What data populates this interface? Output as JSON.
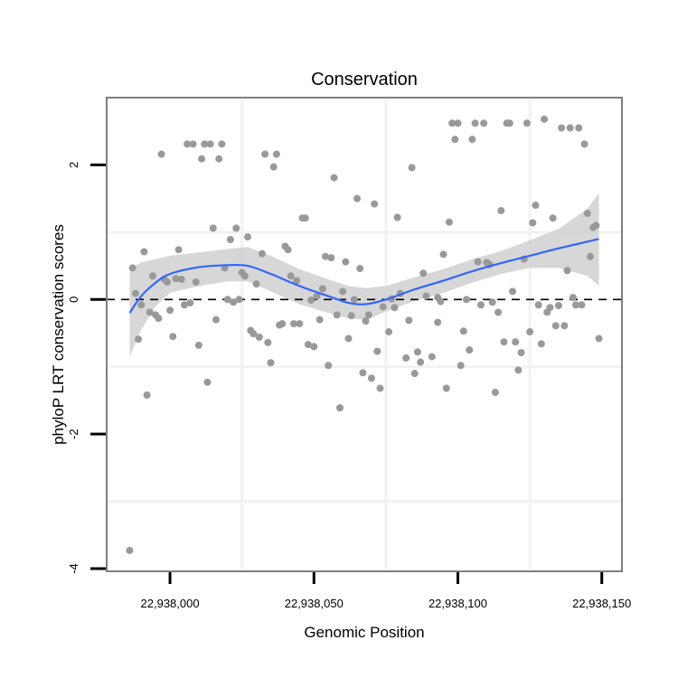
{
  "chart_data": {
    "type": "scatter",
    "title": "Conservation",
    "xlabel": "Genomic Position",
    "ylabel": "phyloP LRT conservation scores",
    "xlim": [
      22937978,
      22938157
    ],
    "ylim": [
      -4.04,
      3.0
    ],
    "xticks": [
      22938000,
      22938050,
      22938100,
      22938150
    ],
    "xtick_labels": [
      "22,938,000",
      "22,938,050",
      "22,938,100",
      "22,938,150"
    ],
    "yticks": [
      -4,
      -2,
      0,
      2
    ],
    "ytick_labels": [
      "-4",
      "-2",
      "0",
      "2"
    ],
    "minor_x_grid": [
      22938025,
      22938075,
      22938125
    ],
    "minor_y_grid": [
      -3,
      -1,
      1
    ],
    "reference_line": {
      "y": 0,
      "style": "dashed",
      "color": "#000000"
    },
    "colors": {
      "points": "#999999",
      "smooth": "#3366FF",
      "band": "#D3D3D3",
      "panel_border": "#7F7F7F",
      "grid": "#F2F2F2"
    },
    "points_x_offset_base": 22938000,
    "points": [
      [
        22938098,
        2.62
      ],
      [
        22938100,
        2.62
      ],
      [
        22938106,
        2.62
      ],
      [
        22938109,
        2.62
      ],
      [
        22938117,
        2.62
      ],
      [
        22938118,
        2.62
      ],
      [
        22938124,
        2.62
      ],
      [
        22938130,
        2.68
      ],
      [
        22938136,
        2.55
      ],
      [
        22938139,
        2.55
      ],
      [
        22938142,
        2.55
      ],
      [
        22938144,
        2.31
      ],
      [
        22938099,
        2.38
      ],
      [
        22938105,
        2.38
      ],
      [
        22938084,
        1.96
      ],
      [
        22938071,
        1.42
      ],
      [
        22938079,
        1.22
      ],
      [
        22938097,
        1.15
      ],
      [
        22938115,
        1.32
      ],
      [
        22938127,
        1.4
      ],
      [
        22938126,
        1.14
      ],
      [
        22938133,
        1.21
      ],
      [
        22938145,
        1.28
      ],
      [
        22938147,
        1.07
      ],
      [
        22938148,
        1.1
      ],
      [
        22938095,
        0.67
      ],
      [
        22938088,
        0.39
      ],
      [
        22938107,
        0.56
      ],
      [
        22938110,
        0.55
      ],
      [
        22938111,
        0.52
      ],
      [
        22938123,
        0.6
      ],
      [
        22938146,
        0.64
      ],
      [
        22938138,
        0.43
      ],
      [
        22938119,
        0.12
      ],
      [
        22938080,
        0.09
      ],
      [
        22938089,
        0.05
      ],
      [
        22938093,
        0.03
      ],
      [
        22938094,
        -0.03
      ],
      [
        22938103,
        0.0
      ],
      [
        22938108,
        -0.08
      ],
      [
        22938112,
        -0.04
      ],
      [
        22938114,
        -0.19
      ],
      [
        22938128,
        -0.08
      ],
      [
        22938131,
        -0.19
      ],
      [
        22938132,
        -0.12
      ],
      [
        22938135,
        -0.09
      ],
      [
        22938140,
        0.03
      ],
      [
        22938141,
        -0.08
      ],
      [
        22938143,
        -0.08
      ],
      [
        22938074,
        -0.11
      ],
      [
        22938078,
        -0.12
      ],
      [
        22938077,
        0.01
      ],
      [
        22938069,
        -0.23
      ],
      [
        22938068,
        -0.32
      ],
      [
        22938083,
        -0.31
      ],
      [
        22938093,
        -0.34
      ],
      [
        22938076,
        -0.48
      ],
      [
        22938102,
        -0.47
      ],
      [
        22938125,
        -0.48
      ],
      [
        22938134,
        -0.39
      ],
      [
        22938137,
        -0.39
      ],
      [
        22938149,
        -0.58
      ],
      [
        22938072,
        -0.77
      ],
      [
        22938082,
        -0.87
      ],
      [
        22938086,
        -0.78
      ],
      [
        22938087,
        -0.93
      ],
      [
        22938091,
        -0.85
      ],
      [
        22938104,
        -0.75
      ],
      [
        22938116,
        -0.63
      ],
      [
        22938120,
        -0.63
      ],
      [
        22938122,
        -0.79
      ],
      [
        22938129,
        -0.66
      ],
      [
        22938067,
        -1.09
      ],
      [
        22938070,
        -1.17
      ],
      [
        22938073,
        -1.32
      ],
      [
        22938085,
        -1.1
      ],
      [
        22938101,
        -0.98
      ],
      [
        22938096,
        -1.32
      ],
      [
        22938113,
        -1.38
      ],
      [
        22938121,
        -1.05
      ],
      [
        22937997,
        2.16
      ],
      [
        22938006,
        2.31
      ],
      [
        22938008,
        2.31
      ],
      [
        22938012,
        2.31
      ],
      [
        22938014,
        2.31
      ],
      [
        22938018,
        2.31
      ],
      [
        22938011,
        2.09
      ],
      [
        22938017,
        2.09
      ],
      [
        22938033,
        2.16
      ],
      [
        22938037,
        2.16
      ],
      [
        22938036,
        1.97
      ],
      [
        22938057,
        1.81
      ],
      [
        22938065,
        1.5
      ],
      [
        22938046,
        1.21
      ],
      [
        22938047,
        1.21
      ],
      [
        22938015,
        1.06
      ],
      [
        22938023,
        1.06
      ],
      [
        22938021,
        0.89
      ],
      [
        22938027,
        0.93
      ],
      [
        22937991,
        0.71
      ],
      [
        22938003,
        0.74
      ],
      [
        22938040,
        0.79
      ],
      [
        22938041,
        0.74
      ],
      [
        22938032,
        0.68
      ],
      [
        22938054,
        0.64
      ],
      [
        22938056,
        0.62
      ],
      [
        22938061,
        0.56
      ],
      [
        22938066,
        0.46
      ],
      [
        22937987,
        0.47
      ],
      [
        22937994,
        0.35
      ],
      [
        22937998,
        0.3
      ],
      [
        22937999,
        0.26
      ],
      [
        22938002,
        0.31
      ],
      [
        22938004,
        0.3
      ],
      [
        22938009,
        0.26
      ],
      [
        22938019,
        0.47
      ],
      [
        22938025,
        0.4
      ],
      [
        22938026,
        0.35
      ],
      [
        22938030,
        0.23
      ],
      [
        22938042,
        0.35
      ],
      [
        22938044,
        0.28
      ],
      [
        22938053,
        0.16
      ],
      [
        22938051,
        0.05
      ],
      [
        22938060,
        0.12
      ],
      [
        22937988,
        0.09
      ],
      [
        22937990,
        -0.08
      ],
      [
        22938020,
        0.0
      ],
      [
        22938022,
        -0.04
      ],
      [
        22938024,
        0.0
      ],
      [
        22938049,
        -0.01
      ],
      [
        22938064,
        0.0
      ],
      [
        22937993,
        -0.19
      ],
      [
        22937995,
        -0.23
      ],
      [
        22937996,
        -0.28
      ],
      [
        22938000,
        -0.16
      ],
      [
        22938005,
        -0.08
      ],
      [
        22938007,
        -0.05
      ],
      [
        22938016,
        -0.3
      ],
      [
        22938058,
        -0.23
      ],
      [
        22938063,
        -0.24
      ],
      [
        22937989,
        -0.59
      ],
      [
        22938001,
        -0.55
      ],
      [
        22938010,
        -0.68
      ],
      [
        22938028,
        -0.46
      ],
      [
        22938029,
        -0.51
      ],
      [
        22938031,
        -0.56
      ],
      [
        22938034,
        -0.64
      ],
      [
        22938038,
        -0.38
      ],
      [
        22938039,
        -0.36
      ],
      [
        22938043,
        -0.36
      ],
      [
        22938045,
        -0.36
      ],
      [
        22938052,
        -0.3
      ],
      [
        22938048,
        -0.67
      ],
      [
        22938050,
        -0.7
      ],
      [
        22938062,
        -0.58
      ],
      [
        22938035,
        -0.94
      ],
      [
        22938055,
        -0.98
      ],
      [
        22938013,
        -1.23
      ],
      [
        22937992,
        -1.42
      ],
      [
        22937986,
        -3.73
      ],
      [
        22938059,
        -1.61
      ]
    ],
    "smooth": {
      "method": "loess",
      "x": [
        22937986,
        22937990,
        22937995,
        22938000,
        22938010,
        22938020,
        22938027,
        22938035,
        22938045,
        22938055,
        22938062,
        22938068,
        22938075,
        22938085,
        22938095,
        22938105,
        22938115,
        22938125,
        22938135,
        22938145,
        22938149
      ],
      "y": [
        -0.2,
        0.05,
        0.25,
        0.38,
        0.48,
        0.51,
        0.5,
        0.38,
        0.2,
        0.05,
        -0.05,
        -0.07,
        0.0,
        0.15,
        0.28,
        0.42,
        0.54,
        0.65,
        0.76,
        0.86,
        0.9
      ],
      "upper": [
        0.45,
        0.55,
        0.6,
        0.65,
        0.7,
        0.75,
        0.78,
        0.65,
        0.45,
        0.3,
        0.2,
        0.17,
        0.2,
        0.33,
        0.45,
        0.6,
        0.72,
        0.88,
        1.05,
        1.35,
        1.58
      ],
      "lower": [
        -0.85,
        -0.45,
        -0.1,
        0.1,
        0.2,
        0.27,
        0.27,
        0.12,
        -0.07,
        -0.2,
        -0.28,
        -0.3,
        -0.18,
        -0.02,
        0.1,
        0.25,
        0.38,
        0.47,
        0.47,
        0.35,
        0.2
      ]
    }
  }
}
